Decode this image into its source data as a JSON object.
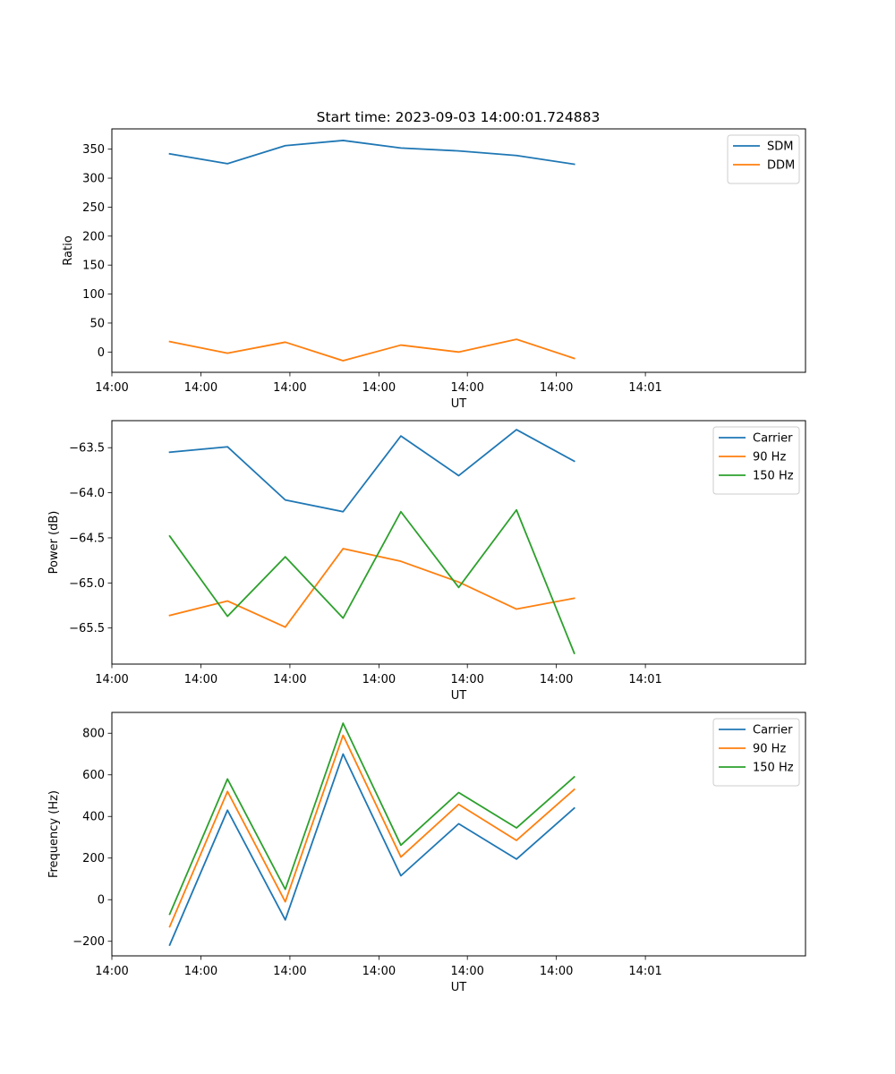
{
  "chart_data": [
    {
      "type": "line",
      "title": "Start time: 2023-09-03 14:00:01.724883",
      "xlabel": "UT",
      "ylabel": "Ratio",
      "xlim": [
        0,
        12
      ],
      "ylim": [
        -35,
        385
      ],
      "x": [
        1,
        2,
        3,
        4,
        5,
        6,
        7,
        8
      ],
      "x_tick_values": [
        0,
        1.54,
        3.08,
        4.62,
        6.15,
        7.69,
        9.23
      ],
      "x_tick_labels": [
        "14:00",
        "14:00",
        "14:00",
        "14:00",
        "14:00",
        "14:00",
        "14:01"
      ],
      "y_ticks": [
        0,
        50,
        100,
        150,
        200,
        250,
        300,
        350
      ],
      "legend_position": "top-right",
      "series": [
        {
          "name": "SDM",
          "color": "#1f77b4",
          "values": [
            342,
            325,
            356,
            365,
            352,
            347,
            339,
            324
          ]
        },
        {
          "name": "DDM",
          "color": "#ff7f0e",
          "values": [
            18,
            -2,
            17,
            -15,
            12,
            0,
            22,
            -11
          ]
        }
      ]
    },
    {
      "type": "line",
      "title": "",
      "xlabel": "UT",
      "ylabel": "Power (dB)",
      "xlim": [
        0,
        12
      ],
      "ylim": [
        -65.9,
        -63.2
      ],
      "x": [
        1,
        2,
        3,
        4,
        5,
        6,
        7,
        8
      ],
      "x_tick_values": [
        0,
        1.54,
        3.08,
        4.62,
        6.15,
        7.69,
        9.23
      ],
      "x_tick_labels": [
        "14:00",
        "14:00",
        "14:00",
        "14:00",
        "14:00",
        "14:00",
        "14:01"
      ],
      "y_ticks": [
        -65.5,
        -65.0,
        -64.5,
        -64.0,
        -63.5
      ],
      "y_tick_labels": [
        "−65.5",
        "−65.0",
        "−64.5",
        "−64.0",
        "−63.5"
      ],
      "legend_position": "top-right",
      "series": [
        {
          "name": "Carrier",
          "color": "#1f77b4",
          "values": [
            -63.55,
            -63.49,
            -64.08,
            -64.21,
            -63.37,
            -63.81,
            -63.3,
            -63.65
          ]
        },
        {
          "name": "90 Hz",
          "color": "#ff7f0e",
          "values": [
            -65.36,
            -65.2,
            -65.49,
            -64.62,
            -64.76,
            -64.99,
            -65.29,
            -65.17
          ]
        },
        {
          "name": "150 Hz",
          "color": "#2ca02c",
          "values": [
            -64.48,
            -65.37,
            -64.71,
            -65.39,
            -64.21,
            -65.05,
            -64.19,
            -65.78
          ]
        }
      ]
    },
    {
      "type": "line",
      "title": "",
      "xlabel": "UT",
      "ylabel": "Frequency (Hz)",
      "xlim": [
        0,
        12
      ],
      "ylim": [
        -270,
        900
      ],
      "x": [
        1,
        2,
        3,
        4,
        5,
        6,
        7,
        8
      ],
      "x_tick_values": [
        0,
        1.54,
        3.08,
        4.62,
        6.15,
        7.69,
        9.23
      ],
      "x_tick_labels": [
        "14:00",
        "14:00",
        "14:00",
        "14:00",
        "14:00",
        "14:00",
        "14:01"
      ],
      "y_ticks": [
        -200,
        0,
        200,
        400,
        600,
        800
      ],
      "y_tick_labels": [
        "−200",
        "0",
        "200",
        "400",
        "600",
        "800"
      ],
      "legend_position": "top-right",
      "series": [
        {
          "name": "Carrier",
          "color": "#1f77b4",
          "values": [
            -218,
            430,
            -97,
            700,
            115,
            365,
            195,
            440
          ]
        },
        {
          "name": "90 Hz",
          "color": "#ff7f0e",
          "values": [
            -130,
            520,
            -10,
            790,
            205,
            458,
            285,
            530
          ]
        },
        {
          "name": "150 Hz",
          "color": "#2ca02c",
          "values": [
            -70,
            580,
            50,
            848,
            262,
            515,
            345,
            590
          ]
        }
      ]
    }
  ]
}
